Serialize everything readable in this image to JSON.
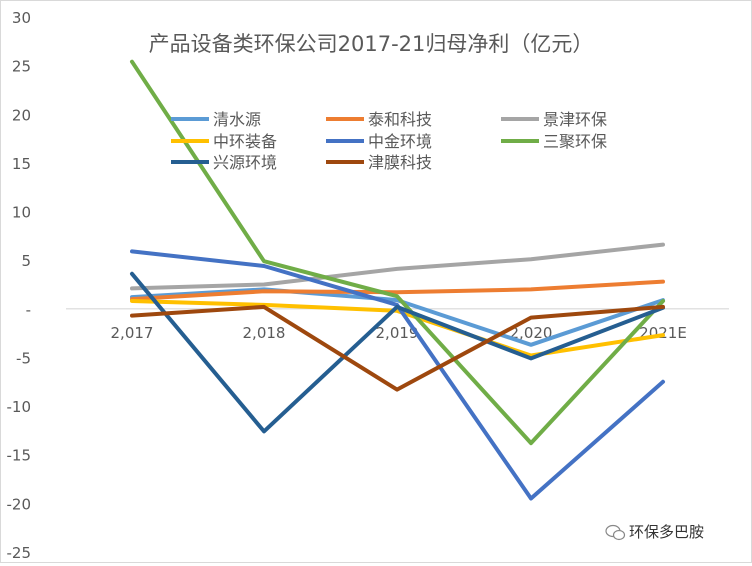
{
  "chart_data": {
    "type": "line",
    "title": "产品设备类环保公司2017-21归母净利（亿元）",
    "categories": [
      "2,017",
      "2,018",
      "2,019",
      "2,020",
      "2021E"
    ],
    "ylim": [
      -25,
      30
    ],
    "yticks": [
      "30",
      "25",
      "20",
      "15",
      "10",
      "5",
      "-",
      "-5",
      "-10",
      "-15",
      "-20",
      "-25"
    ],
    "ytick_values": [
      30,
      25,
      20,
      15,
      10,
      5,
      0,
      -5,
      -10,
      -15,
      -20,
      -25
    ],
    "grid": false,
    "legend_position": "top",
    "series": [
      {
        "name": "清水源",
        "color": "#5B9BD5",
        "values": [
          1.2,
          2.0,
          0.9,
          -3.7,
          0.9
        ]
      },
      {
        "name": "泰和科技",
        "color": "#ED7D31",
        "values": [
          1.0,
          1.8,
          1.7,
          2.0,
          2.8
        ]
      },
      {
        "name": "景津环保",
        "color": "#A5A5A5",
        "values": [
          2.1,
          2.5,
          4.1,
          5.1,
          6.6
        ]
      },
      {
        "name": "中环装备",
        "color": "#FFC000",
        "values": [
          0.8,
          0.4,
          -0.2,
          -4.8,
          -2.7
        ]
      },
      {
        "name": "中金环境",
        "color": "#4472C4",
        "values": [
          5.9,
          4.4,
          0.4,
          -19.5,
          -7.5
        ]
      },
      {
        "name": "三聚环保",
        "color": "#70AD47",
        "values": [
          25.4,
          4.9,
          1.3,
          -13.8,
          0.8
        ]
      },
      {
        "name": "兴源环境",
        "color": "#255E91",
        "values": [
          3.6,
          -12.6,
          0.2,
          -5.1,
          0.1
        ]
      },
      {
        "name": "津膜科技",
        "color": "#9E480E",
        "values": [
          -0.7,
          0.2,
          -8.3,
          -0.9,
          0.2
        ]
      }
    ]
  },
  "watermark": {
    "text": "环保多巴胺",
    "icon": "wechat-icon"
  }
}
